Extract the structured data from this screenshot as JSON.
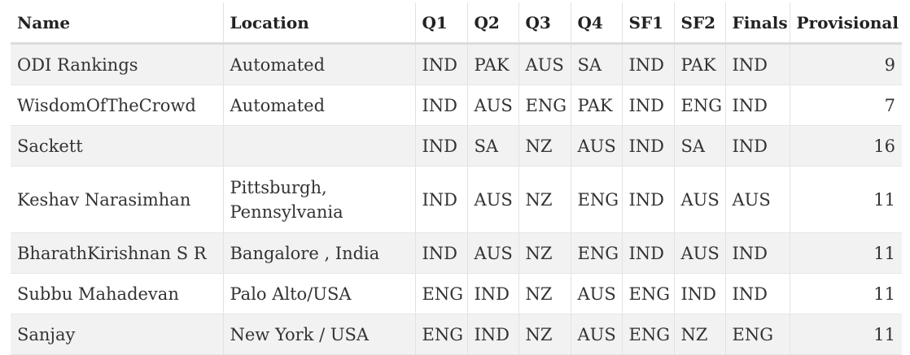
{
  "table": {
    "headers": {
      "name": "Name",
      "location": "Location",
      "q1": "Q1",
      "q2": "Q2",
      "q3": "Q3",
      "q4": "Q4",
      "sf1": "SF1",
      "sf2": "SF2",
      "finals": "Finals",
      "provisional": "Provisional"
    },
    "rows": [
      {
        "name": "ODI Rankings",
        "location": "Automated",
        "q1": "IND",
        "q2": "PAK",
        "q3": "AUS",
        "q4": "SA",
        "sf1": "IND",
        "sf2": "PAK",
        "finals": "IND",
        "provisional": "9"
      },
      {
        "name": "WisdomOfTheCrowd",
        "location": "Automated",
        "q1": "IND",
        "q2": "AUS",
        "q3": "ENG",
        "q4": "PAK",
        "sf1": "IND",
        "sf2": "ENG",
        "finals": "IND",
        "provisional": "7"
      },
      {
        "name": "Sackett",
        "location": "",
        "q1": "IND",
        "q2": "SA",
        "q3": "NZ",
        "q4": "AUS",
        "sf1": "IND",
        "sf2": "SA",
        "finals": "IND",
        "provisional": "16"
      },
      {
        "name": "Keshav Narasimhan",
        "location": "Pittsburgh, Pennsylvania",
        "q1": "IND",
        "q2": "AUS",
        "q3": "NZ",
        "q4": "ENG",
        "sf1": "IND",
        "sf2": "AUS",
        "finals": "AUS",
        "provisional": "11"
      },
      {
        "name": "BharathKirishnan S R",
        "location": "Bangalore , India",
        "q1": "IND",
        "q2": "AUS",
        "q3": "NZ",
        "q4": "ENG",
        "sf1": "IND",
        "sf2": "AUS",
        "finals": "IND",
        "provisional": "11"
      },
      {
        "name": "Subbu Mahadevan",
        "location": "Palo Alto/USA",
        "q1": "ENG",
        "q2": "IND",
        "q3": "NZ",
        "q4": "AUS",
        "sf1": "ENG",
        "sf2": "IND",
        "finals": "IND",
        "provisional": "11"
      },
      {
        "name": "Sanjay",
        "location": "New York / USA",
        "q1": "ENG",
        "q2": "IND",
        "q3": "NZ",
        "q4": "AUS",
        "sf1": "ENG",
        "sf2": "NZ",
        "finals": "ENG",
        "provisional": "11"
      }
    ]
  }
}
